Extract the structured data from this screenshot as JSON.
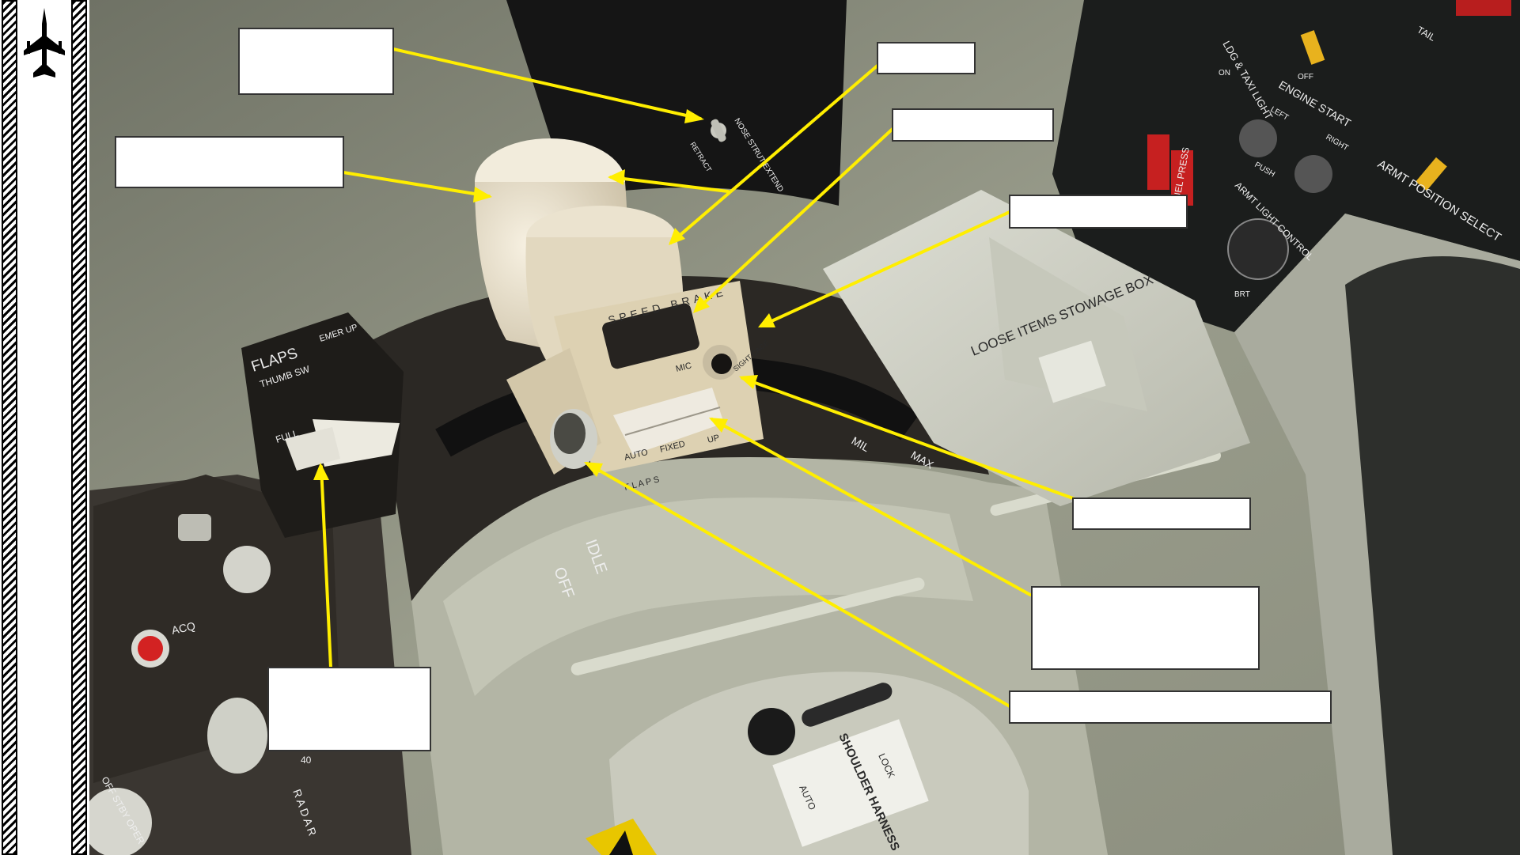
{
  "labels": {
    "nose_strut_switch": "",
    "throttle_grip": "",
    "speed_brake_switch": "",
    "radar_antenna_elevation": "",
    "throttle_friction": "",
    "sight_cage_button": "",
    "flaps_thumb_switch": "",
    "mic_button": "",
    "flaps_lever": ""
  },
  "panel_text": {
    "nose_strut": "NOSE STRUT EXTEND",
    "retract": "RETRACT",
    "speed_brake": "SPEED BRAKE",
    "mic": "MIC",
    "sight_cage": "SIGHT CAGE",
    "flaps_modes": [
      "AUTO",
      "FIXED",
      "UP"
    ],
    "flaps_small": "F L A P S",
    "flaps_panel_title": "FLAPS",
    "flaps_thumb": "THUMB SW",
    "flaps_emer": "EMER UP",
    "flaps_full": "FULL",
    "throttle_idle": "IDLE",
    "throttle_off": "OFF",
    "throttle_mil": "MIL",
    "throttle_max": "MAX",
    "stowage_box": "LOOSE ITEMS STOWAGE BOX",
    "acq": "ACQ",
    "radar": "R A D A R",
    "radar_modes": "OFF  STBY OPER",
    "radar_40": "40",
    "harness_title": "SHOULDER HARNESS",
    "harness_lock": "LOCK",
    "harness_auto": "AUTO",
    "ldg_taxi": "LDG & TAXI LIGHT",
    "on": "ON",
    "off": "OFF",
    "engine_start": "ENGINE START",
    "left": "LEFT",
    "right": "RIGHT",
    "push": "PUSH",
    "armt_light": "ARMT LIGHT CONTROL",
    "brt": "BRT",
    "armt_position": "ARMT POSITION SELECT",
    "fuel_press": "FUEL PRESS",
    "tail": "TAIL"
  },
  "colors": {
    "callout_line": "#ffee00",
    "cockpit_wall": "#8a8d7c",
    "grip": "#e6dcc6"
  }
}
